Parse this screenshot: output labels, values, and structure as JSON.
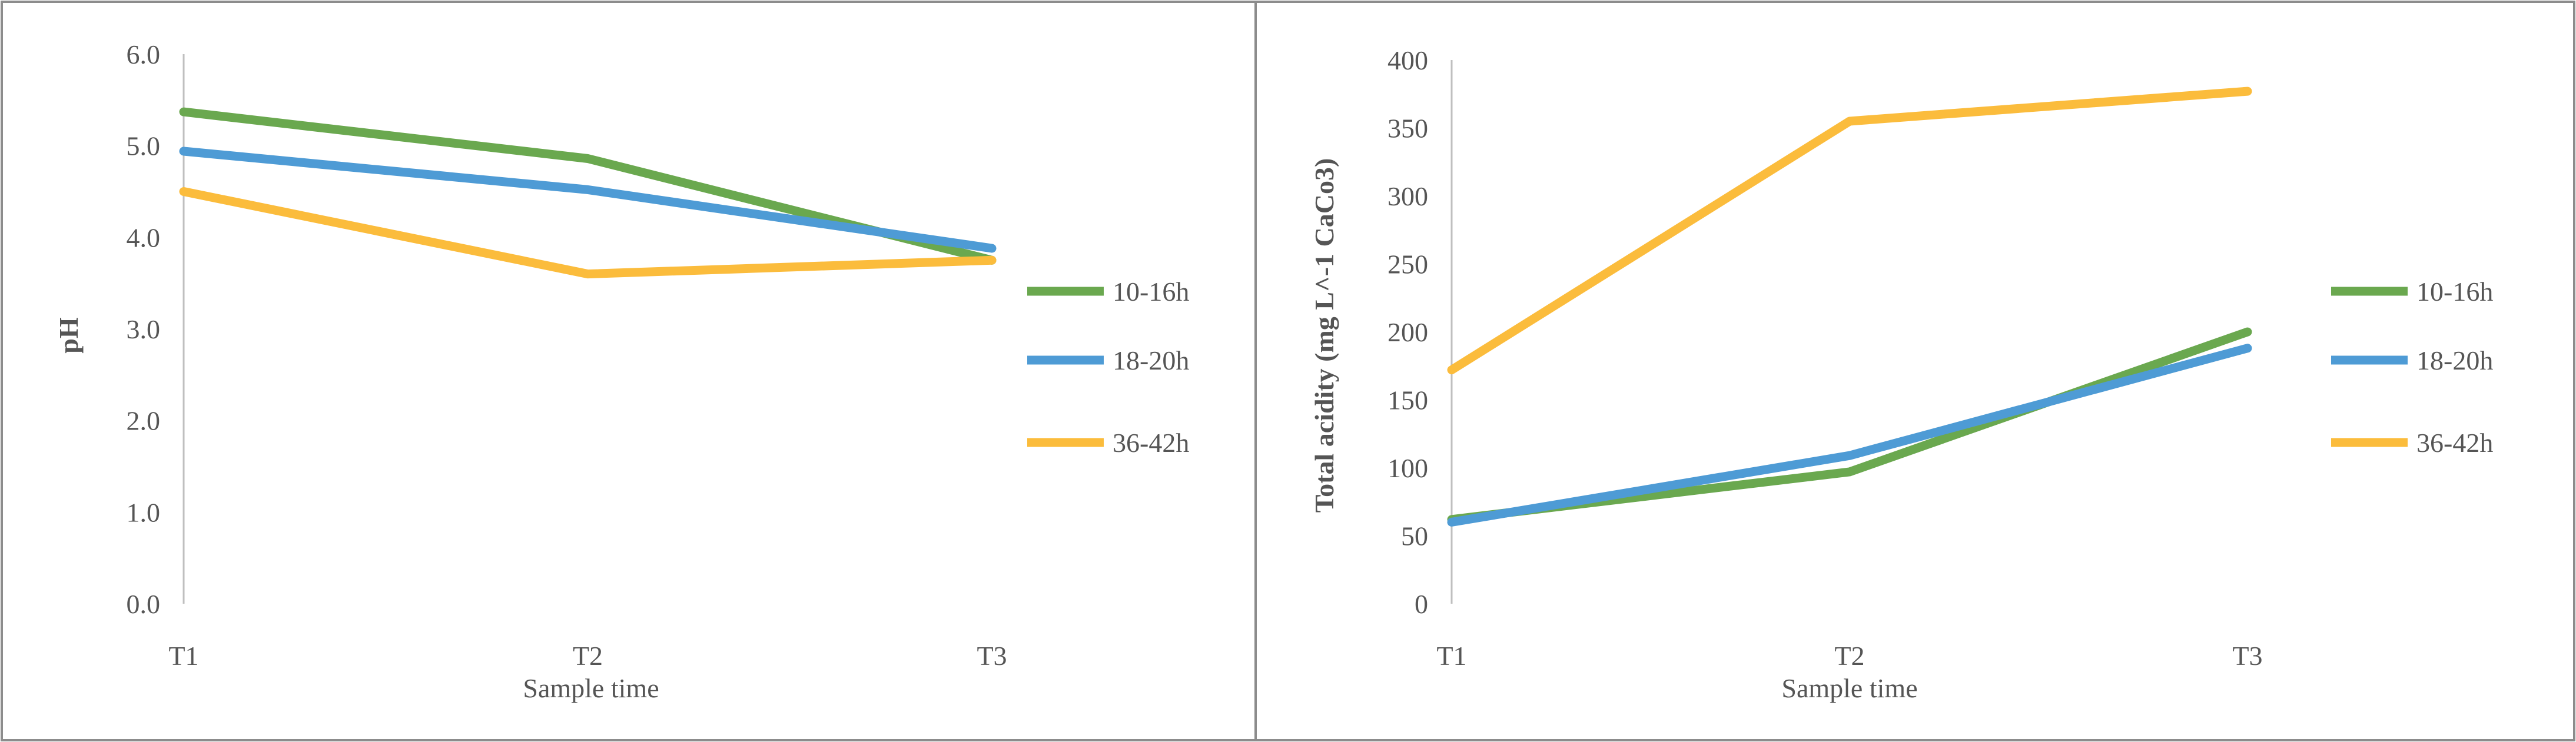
{
  "colors": {
    "series": [
      "#6aa84f",
      "#4e9bd5",
      "#fbbc3c"
    ],
    "axis": "#bfbfbf",
    "text": "#555555",
    "frame": "#8c8c8c"
  },
  "chart_data": [
    {
      "type": "line",
      "categories": [
        "T1",
        "T2",
        "T3"
      ],
      "series": [
        {
          "name": "10-16h",
          "values": [
            5.37,
            4.86,
            3.75
          ]
        },
        {
          "name": "18-20h",
          "values": [
            4.94,
            4.52,
            3.88
          ]
        },
        {
          "name": "36-42h",
          "values": [
            4.5,
            3.6,
            3.75
          ]
        }
      ],
      "title": "",
      "xlabel": "Sample time",
      "ylabel": "pH",
      "ylim": [
        0,
        6
      ],
      "yticks": [
        "0.0",
        "1.0",
        "2.0",
        "3.0",
        "4.0",
        "5.0",
        "6.0"
      ],
      "legend": "right"
    },
    {
      "type": "line",
      "categories": [
        "T1",
        "T2",
        "T3"
      ],
      "series": [
        {
          "name": "10-16h",
          "values": [
            62,
            97,
            200
          ]
        },
        {
          "name": "18-20h",
          "values": [
            60,
            109,
            188
          ]
        },
        {
          "name": "36-42h",
          "values": [
            172,
            355,
            377
          ]
        }
      ],
      "title": "",
      "xlabel": "Sample time",
      "ylabel": "Total acidity (mg L^-1 CaCo3)",
      "ylim": [
        0,
        400
      ],
      "yticks": [
        "0",
        "50",
        "100",
        "150",
        "200",
        "250",
        "300",
        "350",
        "400"
      ],
      "legend": "right"
    }
  ]
}
